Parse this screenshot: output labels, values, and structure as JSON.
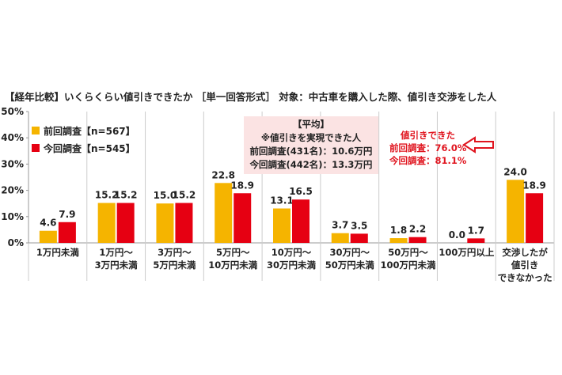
{
  "title": "【経年比較】いくらくらい値引きできたか ［単一回答形式］ 対象：中古車を購入した際、値引き交渉をした人",
  "colors": {
    "prev": "#f5b400",
    "curr": "#e60012",
    "callout": "#e0141e",
    "avgbox": "#fbe3e3",
    "axis": "#999999",
    "grid": "#cccccc"
  },
  "average_box": {
    "heading": "【平均】",
    "subheading": "※値引きを実現できた人",
    "prev_line": "前回調査(431名)：10.6万円",
    "curr_line": "今回調査(442名)：13.3万円"
  },
  "callout": {
    "heading": "値引きできた",
    "prev_line": "前回調査：76.0%",
    "curr_line": "今回調査：81.1%",
    "arrow": "arrow-left-outline-icon"
  },
  "chart_data": {
    "type": "bar",
    "title": "",
    "xlabel": "",
    "ylabel": "",
    "ylim": [
      0,
      50
    ],
    "yticks": [
      "0%",
      "10%",
      "20%",
      "30%",
      "40%",
      "50%"
    ],
    "grid": false,
    "legend_position": "top-left",
    "categories": [
      [
        "1万円未満"
      ],
      [
        "1万円～",
        "3万円未満"
      ],
      [
        "3万円～",
        "5万円未満"
      ],
      [
        "5万円～",
        "10万円未満"
      ],
      [
        "10万円～",
        "30万円未満"
      ],
      [
        "30万円～",
        "50万円未満"
      ],
      [
        "50万円～",
        "100万円未満"
      ],
      [
        "100万円以上"
      ],
      [
        "交渉したが",
        "値引き",
        "できなかった"
      ]
    ],
    "series": [
      {
        "name": "前回調査【n=567】",
        "values": [
          4.6,
          15.2,
          15.0,
          22.8,
          13.1,
          3.7,
          1.8,
          0.0,
          24.0
        ]
      },
      {
        "name": "今回調査【n=545】",
        "values": [
          7.9,
          15.2,
          15.2,
          18.9,
          16.5,
          3.5,
          2.2,
          1.7,
          18.9
        ]
      }
    ]
  }
}
